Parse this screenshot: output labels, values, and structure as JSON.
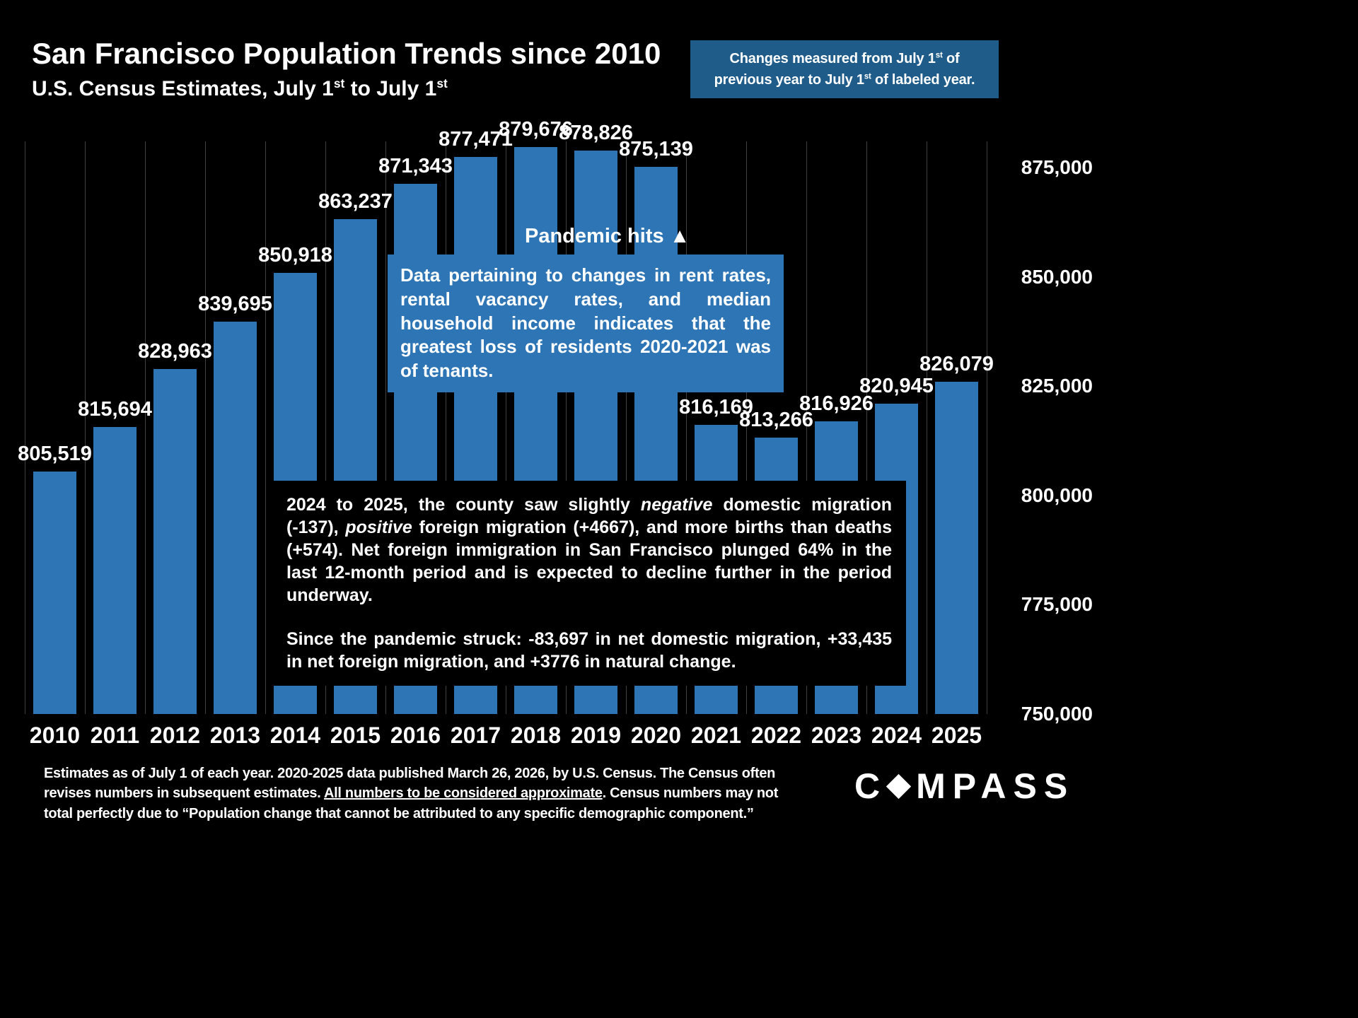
{
  "colors": {
    "background": "#000000",
    "bar_color": "#2e75b6",
    "note_box_color": "#1f5c8a",
    "grid_color": "#404040",
    "text_color": "#ffffff"
  },
  "header": {
    "title": "San Francisco Population Trends since 2010",
    "subtitle_a": "U.S. Census Estimates, July 1",
    "subtitle_sup1": "st",
    "subtitle_b": " to July 1",
    "subtitle_sup2": "st"
  },
  "note_box": {
    "l1a": "Changes measured from July 1",
    "l1sup": "st",
    "l1b": " of",
    "l2a": "previous year to July 1",
    "l2sup": "st",
    "l2b": " of labeled year."
  },
  "chart_data": {
    "type": "bar",
    "title": "San Francisco Population Trends since 2010",
    "subtitle": "U.S. Census Estimates, July 1st to July 1st",
    "xlabel": "",
    "ylabel": "",
    "legend": "none",
    "grid": "vertical",
    "bar_color": "#2e75b6",
    "categories": [
      "2010",
      "2011",
      "2012",
      "2013",
      "2014",
      "2015",
      "2016",
      "2017",
      "2018",
      "2019",
      "2020",
      "2021",
      "2022",
      "2023",
      "2024",
      "2025"
    ],
    "values": [
      805519,
      815694,
      828963,
      839695,
      850918,
      863237,
      871343,
      877471,
      879676,
      878826,
      875139,
      816169,
      813266,
      816926,
      820945,
      826079
    ],
    "value_labels": [
      "805,519",
      "815,694",
      "828,963",
      "839,695",
      "850,918",
      "863,237",
      "871,343",
      "877,471",
      "879,676",
      "878,826",
      "875,139",
      "816,169",
      "813,266",
      "816,926",
      "820,945",
      "826,079"
    ],
    "ylim": [
      750000,
      881000
    ],
    "yticks": [
      {
        "value": 875000,
        "label": "875,000"
      },
      {
        "value": 850000,
        "label": "850,000"
      },
      {
        "value": 825000,
        "label": "825,000"
      },
      {
        "value": 800000,
        "label": "800,000"
      },
      {
        "value": 775000,
        "label": "775,000"
      },
      {
        "value": 750000,
        "label": "750,000"
      }
    ],
    "annotations": {
      "pandemic_text": "Pandemic hits",
      "pandemic_arrow": "▲",
      "tenant_note": "Data pertaining to changes in rent rates, rental vacancy rates, and median household income indicates that the greatest loss of residents 2020-2021 was of tenants.",
      "migration_p1a": "2024 to 2025, the county saw slightly ",
      "migration_p1_italic1": "negative",
      "migration_p1b": " domestic migration (-137), ",
      "migration_p1_italic2": "positive",
      "migration_p1c": " foreign migration (+4667), and more births than deaths (+574). Net foreign immigration in San Francisco plunged 64% in the last 12-month period and is expected to decline further in the period underway.",
      "migration_p2": "Since the pandemic struck: -83,697 in net domestic migration, +33,435 in net foreign migration, and +3776 in natural change."
    }
  },
  "footer": {
    "line1": "Estimates as of July 1 of each year. 2020-2025 data published March 26, 2026, by U.S. Census. The Census often",
    "line2a": "revises numbers in subsequent estimates. ",
    "line2_underlined": "All numbers to be considered approximate",
    "line2b": ". Census numbers may not",
    "line3": "total perfectly due to “Population change that cannot be attributed to any specific demographic component.”"
  },
  "logo": {
    "name": "COMPASS",
    "pre": "C",
    "post": "MPASS"
  }
}
